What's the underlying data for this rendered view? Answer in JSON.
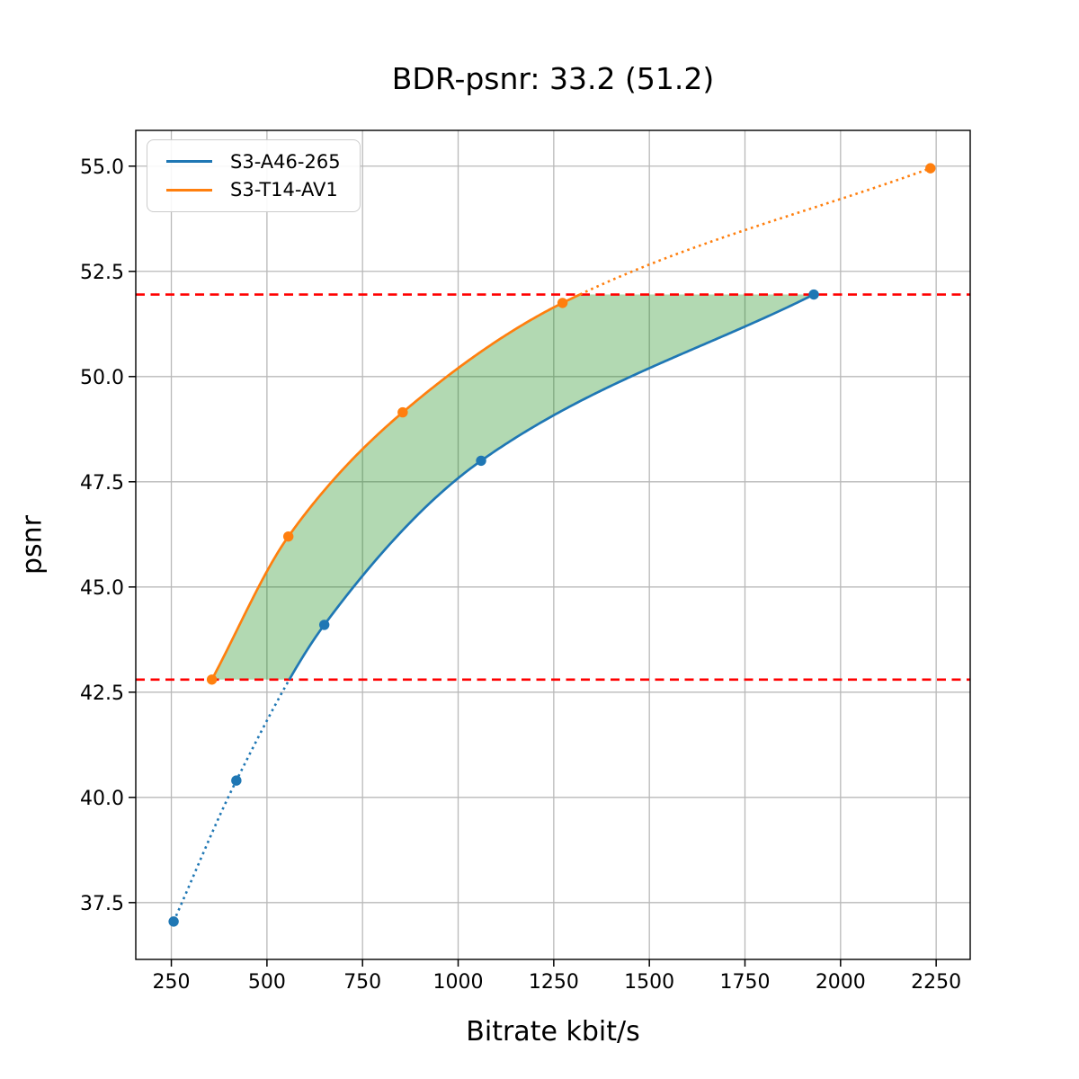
{
  "page": {
    "background": "#ffffff"
  },
  "chart_data": {
    "type": "line",
    "title": "BDR-psnr: 33.2 (51.2)",
    "xlabel": "Bitrate kbit/s",
    "ylabel": "psnr",
    "xlim": [
      157,
      2339
    ],
    "ylim": [
      36.15,
      55.85
    ],
    "x_ticks": [
      250,
      500,
      750,
      1000,
      1250,
      1500,
      1750,
      2000,
      2250
    ],
    "x_tick_labels": [
      "250",
      "500",
      "750",
      "1000",
      "1250",
      "1500",
      "1750",
      "2000",
      "2250"
    ],
    "y_ticks": [
      37.5,
      40.0,
      42.5,
      45.0,
      47.5,
      50.0,
      52.5,
      55.0
    ],
    "y_tick_labels": [
      "37.5",
      "40.0",
      "42.5",
      "45.0",
      "47.5",
      "50.0",
      "52.5",
      "55.0"
    ],
    "grid": true,
    "grid_color": "#b9b9b9",
    "legend_position": "upper-left",
    "series": [
      {
        "name": "S3-A46-265",
        "color": "#1f77b4",
        "marker": "circle",
        "points": [
          [
            256,
            37.05
          ],
          [
            420,
            40.4
          ],
          [
            650,
            44.1
          ],
          [
            1060,
            48.0
          ],
          [
            1930,
            51.95
          ]
        ]
      },
      {
        "name": "S3-T14-AV1",
        "color": "#ff7f0e",
        "marker": "circle",
        "points": [
          [
            356,
            42.8
          ],
          [
            556,
            46.2
          ],
          [
            855,
            49.15
          ],
          [
            1273,
            51.75
          ],
          [
            2235,
            54.95
          ]
        ]
      }
    ],
    "overlap_range_psnr": [
      42.8,
      51.95
    ],
    "reference_lines": [
      {
        "y": 51.95,
        "color": "#ff0000",
        "style": "dashed"
      },
      {
        "y": 42.8,
        "color": "#ff0000",
        "style": "dashed"
      }
    ],
    "shaded_region": {
      "color": "#008000",
      "opacity": 0.3
    }
  }
}
